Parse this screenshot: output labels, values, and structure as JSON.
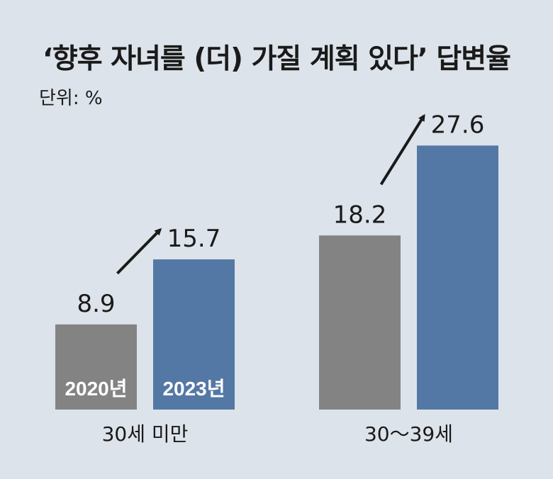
{
  "title": "‘향후 자녀를 (더) 가질 계획 있다’ 답변율",
  "unit_label": "단위: %",
  "colors": {
    "2020": "#838383",
    "2023": "#5478a5",
    "arrow": "#1a1a1a"
  },
  "chart_data": {
    "type": "bar",
    "title": "‘향후 자녀를 (더) 가질 계획 있다’ 답변율",
    "unit": "단위: %",
    "categories": [
      "30세 미만",
      "30～39세"
    ],
    "series": [
      {
        "name": "2020년",
        "values": [
          8.9,
          18.2
        ]
      },
      {
        "name": "2023년",
        "values": [
          15.7,
          27.6
        ]
      }
    ],
    "value_labels": [
      [
        "8.9",
        "18.2"
      ],
      [
        "15.7",
        "27.6"
      ]
    ],
    "ylim": [
      0,
      30
    ],
    "grid": false,
    "legend": "inside-bars"
  }
}
